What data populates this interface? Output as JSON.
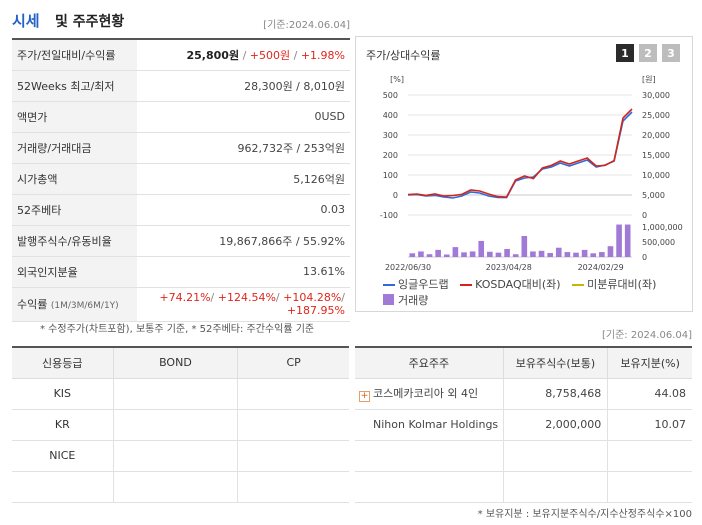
{
  "header": {
    "title_part1": "시세",
    "title_part2": "및 주주현황",
    "date": "[기준:2024.06.04]"
  },
  "quote_table": {
    "rows": [
      {
        "label": "주가/전일대비/수익률",
        "price": "25,800원",
        "change": "+500원",
        "rate": "+1.98%"
      },
      {
        "label": "52Weeks 최고/최저",
        "value": "28,300원 / 8,010원"
      },
      {
        "label": "액면가",
        "value": "0USD"
      },
      {
        "label": "거래량/거래대금",
        "value": "962,732주 / 253억원"
      },
      {
        "label": "시가총액",
        "value": "5,126억원"
      },
      {
        "label": "52주베타",
        "value": "0.03"
      },
      {
        "label": "발행주식수/유동비율",
        "value": "19,867,866주 / 55.92%"
      },
      {
        "label": "외국인지분율",
        "value": "13.61%"
      },
      {
        "label": "수익률",
        "label_sub": "(1M/3M/6M/1Y)",
        "r1": "+74.21%",
        "r2": "+124.54%",
        "r3": "+104.28%",
        "r4": "+187.95%"
      }
    ],
    "note": "* 수정주가(차트포함), 보통주 기준, * 52주베타: 주간수익률 기준"
  },
  "chart_panel": {
    "title": "주가/상대수익률",
    "tabs": [
      "1",
      "2",
      "3"
    ],
    "active_tab": 0,
    "legend": [
      "잉글우드랩",
      "KOSDAQ대비(좌)",
      "미분류대비(좌)",
      "거래량"
    ],
    "colors": {
      "stock": "#2f6bd6",
      "kosdaq": "#d0261e",
      "unclassified": "#c9b400",
      "volume": "#a07ad6"
    }
  },
  "chart_data": {
    "type": "line",
    "left_axis_unit": "[%]",
    "right_axis_unit": "[원]",
    "left_ticks": [
      "500",
      "400",
      "300",
      "200",
      "100",
      "0",
      "-100"
    ],
    "right_ticks": [
      "30,000",
      "25,000",
      "20,000",
      "15,000",
      "10,000",
      "5,000",
      "0"
    ],
    "volume_ticks": [
      "1,000,000",
      "500,000",
      "0"
    ],
    "x_ticks": [
      "2022/06/30",
      "2023/04/28",
      "2024/02/29"
    ],
    "ylim_left": [
      -100,
      500
    ],
    "ylim_right": [
      0,
      30000
    ],
    "series": [
      {
        "name": "잉글우드랩",
        "values": [
          0,
          2,
          -5,
          -2,
          -10,
          -15,
          -5,
          15,
          10,
          -5,
          -12,
          -13,
          70,
          85,
          90,
          130,
          140,
          160,
          145,
          160,
          175,
          140,
          150,
          170,
          370,
          415
        ]
      },
      {
        "name": "KOSDAQ대비(좌)",
        "values": [
          2,
          5,
          -2,
          5,
          -5,
          -3,
          3,
          25,
          20,
          5,
          -8,
          -10,
          75,
          95,
          82,
          135,
          148,
          170,
          155,
          170,
          185,
          145,
          148,
          172,
          385,
          430
        ]
      }
    ],
    "volume": [
      120000,
      180000,
      90000,
      230000,
      80000,
      320000,
      150000,
      180000,
      520000,
      170000,
      140000,
      260000,
      90000,
      680000,
      180000,
      200000,
      130000,
      300000,
      160000,
      140000,
      230000,
      120000,
      160000,
      350000,
      1050000,
      1050000
    ]
  },
  "credit_table": {
    "headers": [
      "신용등급",
      "BOND",
      "CP"
    ],
    "rows": [
      {
        "agency": "KIS",
        "bond": "",
        "cp": ""
      },
      {
        "agency": "KR",
        "bond": "",
        "cp": ""
      },
      {
        "agency": "NICE",
        "bond": "",
        "cp": ""
      },
      {
        "agency": "",
        "bond": "",
        "cp": ""
      }
    ]
  },
  "holders_table": {
    "date": "[기준: 2024.06.04]",
    "headers": [
      "주요주주",
      "보유주식수(보통)",
      "보유지분(%)"
    ],
    "rows": [
      {
        "name": "코스메카코리아 외 4인",
        "shares": "8,758,468",
        "pct": "44.08",
        "expandable": true,
        "expand_symbol": "+"
      },
      {
        "name": "Nihon Kolmar Holdings",
        "shares": "2,000,000",
        "pct": "10.07",
        "expandable": false
      },
      {
        "name": "",
        "shares": "",
        "pct": ""
      },
      {
        "name": "",
        "shares": "",
        "pct": ""
      }
    ],
    "note": "* 보유지분 : 보유지분주식수/지수산정주식수×100"
  }
}
